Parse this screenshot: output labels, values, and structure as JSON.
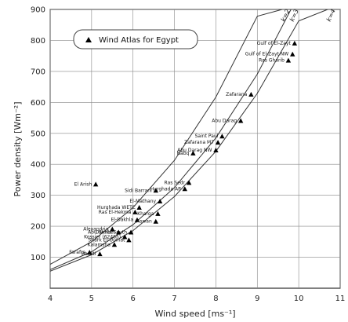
{
  "chart_data": {
    "type": "scatter",
    "title": "",
    "xlabel": "Wind speed [ms⁻¹]",
    "ylabel": "Power density [Wm⁻²]",
    "xlim": [
      4,
      11
    ],
    "ylim": [
      0,
      900
    ],
    "x_ticks": [
      4,
      5,
      6,
      7,
      8,
      9,
      10,
      11
    ],
    "y_ticks": [
      100,
      200,
      300,
      400,
      500,
      600,
      700,
      800,
      900
    ],
    "grid": true,
    "legend": {
      "label": "Wind Atlas for Egypt",
      "position": "top-left"
    },
    "curves": [
      {
        "name": "k=2",
        "x": [
          4,
          5,
          6,
          7,
          8,
          9,
          9.6
        ],
        "y": [
          77,
          150,
          260,
          413,
          617,
          878,
          900
        ]
      },
      {
        "name": "k=3",
        "x": [
          4,
          5,
          6,
          7,
          8,
          9,
          10,
          10.4
        ],
        "y": [
          60,
          118,
          205,
          325,
          485,
          691,
          948,
          900
        ]
      },
      {
        "name": "k=4",
        "x": [
          4,
          5,
          6,
          7,
          8,
          9,
          10,
          10.7
        ],
        "y": [
          55,
          108,
          186,
          296,
          442,
          629,
          863,
          900
        ]
      }
    ],
    "series": [
      {
        "name": "Wind Atlas for Egypt",
        "points": [
          {
            "label": "Gulf of El-Zayt",
            "x": 9.9,
            "y": 790
          },
          {
            "label": "Gulf of El-Zayt NW",
            "x": 9.85,
            "y": 755
          },
          {
            "label": "Ras Gharib",
            "x": 9.75,
            "y": 735
          },
          {
            "label": "Zafarana",
            "x": 8.85,
            "y": 625
          },
          {
            "label": "Abu Darag",
            "x": 8.6,
            "y": 540
          },
          {
            "label": "Saint Paul",
            "x": 8.15,
            "y": 490
          },
          {
            "label": "Zafarana M7",
            "x": 8.05,
            "y": 470
          },
          {
            "label": "Abu Darag NW",
            "x": 8.0,
            "y": 445
          },
          {
            "label": "Nabq",
            "x": 7.45,
            "y": 435
          },
          {
            "label": "El Arish",
            "x": 5.1,
            "y": 335
          },
          {
            "label": "Sidi Barrani",
            "x": 6.55,
            "y": 315
          },
          {
            "label": "Ras Sedr",
            "x": 7.35,
            "y": 340
          },
          {
            "label": "Hurghada AP",
            "x": 7.25,
            "y": 320
          },
          {
            "label": "El-Mathany",
            "x": 6.65,
            "y": 280
          },
          {
            "label": "Hurghada WETC",
            "x": 6.15,
            "y": 260
          },
          {
            "label": "Ras El-Hekma",
            "x": 6.05,
            "y": 245
          },
          {
            "label": "Kharga",
            "x": 6.6,
            "y": 240
          },
          {
            "label": "El-Dakhla",
            "x": 6.1,
            "y": 220
          },
          {
            "label": "Aswan",
            "x": 6.55,
            "y": 215
          },
          {
            "label": "Alexandria",
            "x": 5.5,
            "y": 190
          },
          {
            "label": "Abu Simbel",
            "x": 5.65,
            "y": 180
          },
          {
            "label": "Dakhla South",
            "x": 5.95,
            "y": 180
          },
          {
            "label": "Kossier (62465)",
            "x": 5.8,
            "y": 165
          },
          {
            "label": "Shark El-Ouinat",
            "x": 5.9,
            "y": 155
          },
          {
            "label": "Kalamsha",
            "x": 5.55,
            "y": 140
          },
          {
            "label": "Farafra",
            "x": 4.95,
            "y": 115
          },
          {
            "label": "Bawiti",
            "x": 5.2,
            "y": 110
          }
        ]
      }
    ]
  }
}
